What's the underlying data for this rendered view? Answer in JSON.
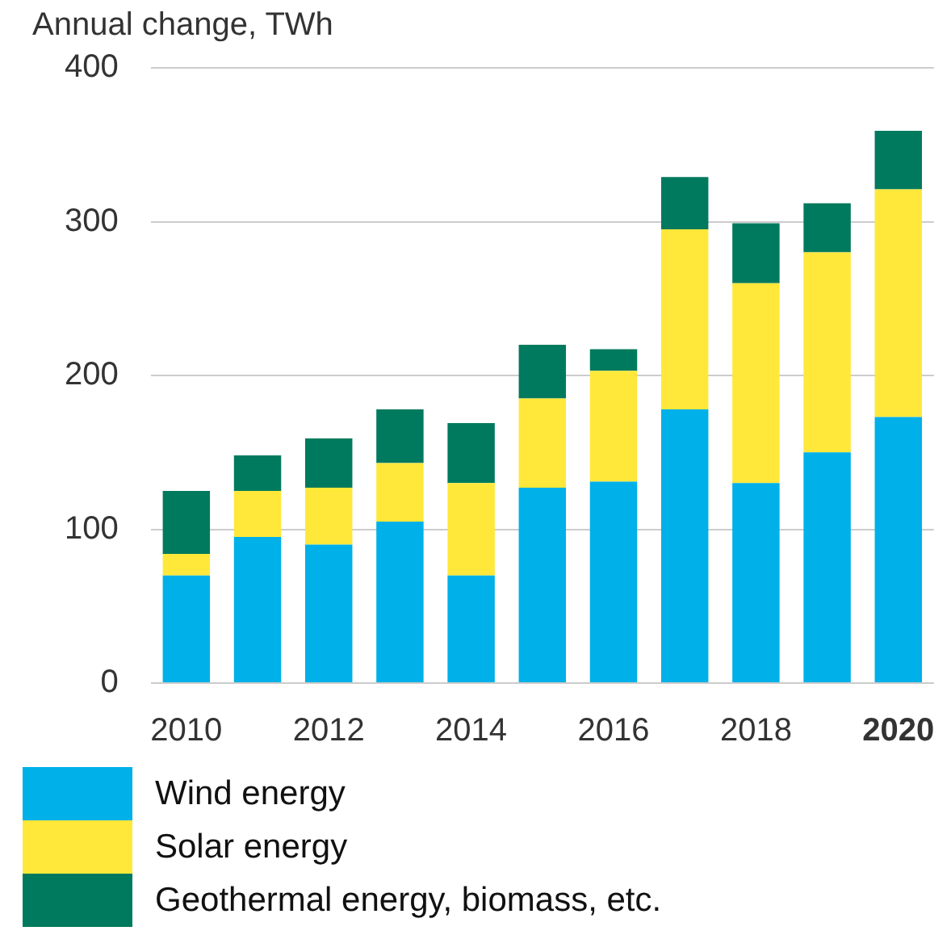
{
  "chart_data": {
    "type": "bar",
    "ylabel": "Annual change, TWh",
    "stacked": true,
    "categories": [
      "2010",
      null,
      "2012",
      null,
      "2014",
      null,
      "2016",
      null,
      "2018",
      null,
      "2020"
    ],
    "series": [
      {
        "name": "Wind energy",
        "color": "#00b0e8",
        "values": [
          70,
          95,
          90,
          105,
          70,
          127,
          131,
          178,
          130,
          150,
          173
        ]
      },
      {
        "name": "Solar energy",
        "color": "#ffe83a",
        "values": [
          14,
          30,
          37,
          38,
          60,
          58,
          72,
          117,
          130,
          130,
          148
        ]
      },
      {
        "name": "Geothermal energy, biomass, etc.",
        "color": "#007a5e",
        "values": [
          41,
          23,
          32,
          35,
          39,
          35,
          14,
          34,
          39,
          32,
          38
        ]
      }
    ],
    "ylim": [
      0,
      400
    ],
    "yticks": [
      0,
      100,
      200,
      300,
      400
    ],
    "grid": "y",
    "legend": "bottom"
  }
}
